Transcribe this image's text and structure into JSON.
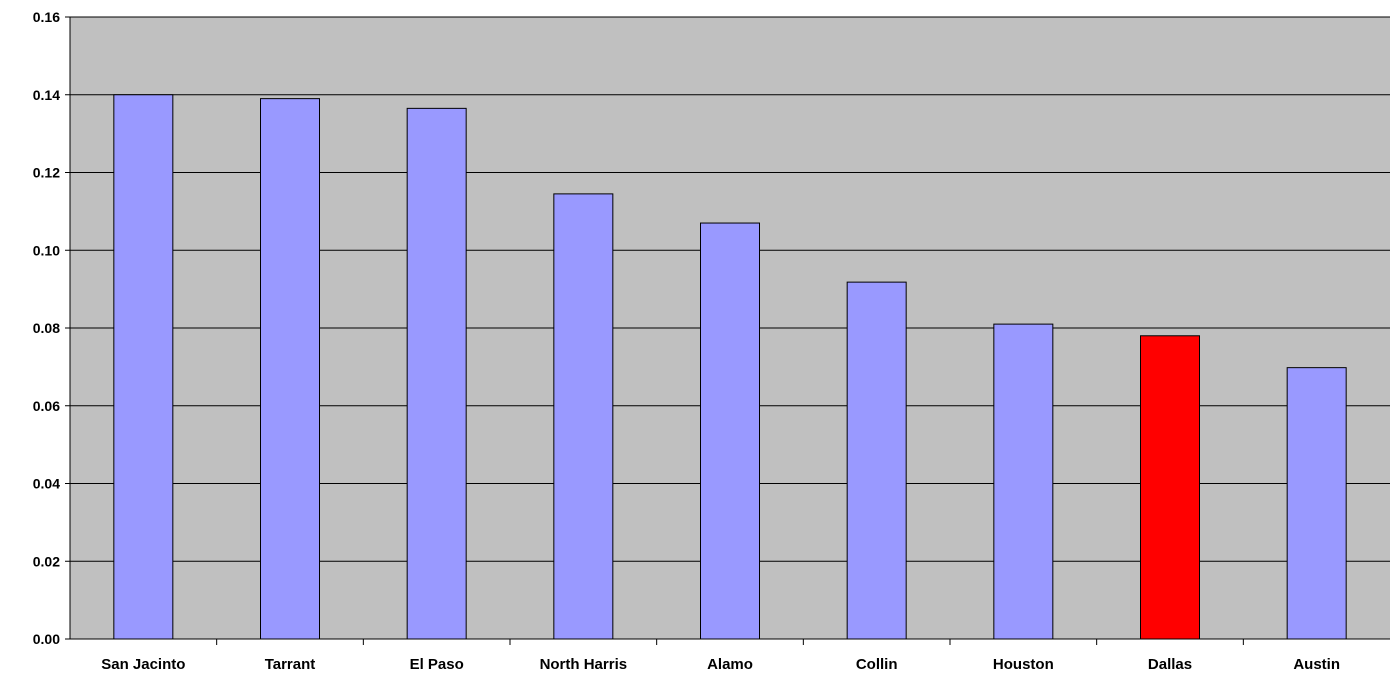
{
  "chart_data": {
    "type": "bar",
    "title": "",
    "xlabel": "",
    "ylabel": "",
    "categories": [
      "San Jacinto",
      "Tarrant",
      "El Paso",
      "North Harris",
      "Alamo",
      "Collin",
      "Houston",
      "Dallas",
      "Austin"
    ],
    "values": [
      0.14,
      0.139,
      0.1365,
      0.1145,
      0.107,
      0.0918,
      0.081,
      0.078,
      0.0698
    ],
    "ylim": [
      0,
      0.16
    ],
    "yticks": [
      "0.00",
      "0.02",
      "0.04",
      "0.06",
      "0.08",
      "0.10",
      "0.12",
      "0.14",
      "0.16"
    ],
    "grid": true,
    "legend": "none",
    "colors": {
      "plot_background": "#c0c0c0",
      "bar_default": "#9999ff",
      "bar_highlight": "#ff0000",
      "highlight_category": "Dallas",
      "gridline": "#000000",
      "bar_border": "#000000"
    }
  }
}
